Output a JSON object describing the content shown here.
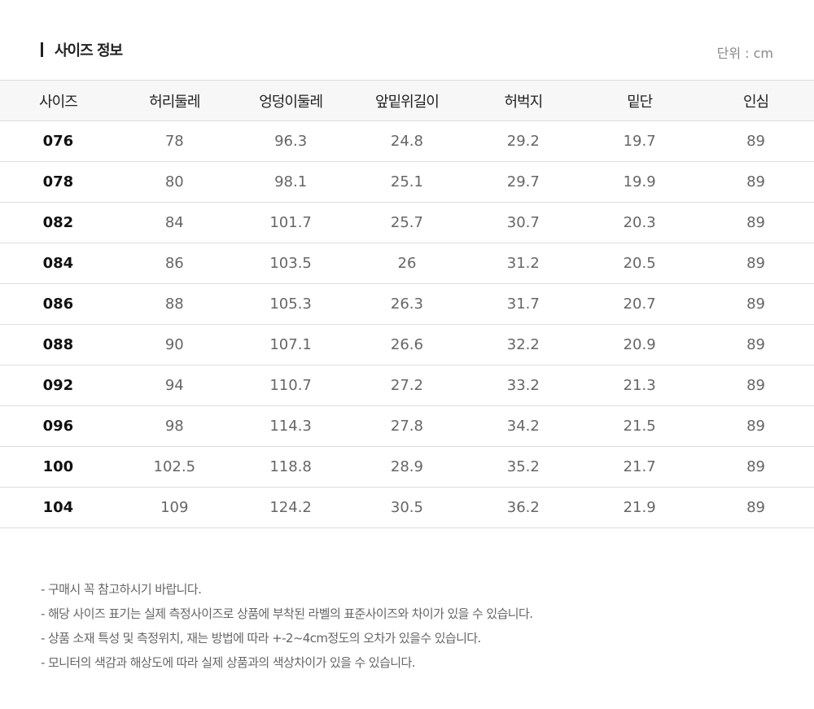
{
  "title": "사이즈 정보",
  "unit": "단위 : cm",
  "table": {
    "headers": [
      "사이즈",
      "허리둘레",
      "엉덩이둘레",
      "앞밑위길이",
      "허벅지",
      "밑단",
      "인심"
    ],
    "rows": [
      [
        "076",
        "78",
        "96.3",
        "24.8",
        "29.2",
        "19.7",
        "89"
      ],
      [
        "078",
        "80",
        "98.1",
        "25.1",
        "29.7",
        "19.9",
        "89"
      ],
      [
        "082",
        "84",
        "101.7",
        "25.7",
        "30.7",
        "20.3",
        "89"
      ],
      [
        "084",
        "86",
        "103.5",
        "26",
        "31.2",
        "20.5",
        "89"
      ],
      [
        "086",
        "88",
        "105.3",
        "26.3",
        "31.7",
        "20.7",
        "89"
      ],
      [
        "088",
        "90",
        "107.1",
        "26.6",
        "32.2",
        "20.9",
        "89"
      ],
      [
        "092",
        "94",
        "110.7",
        "27.2",
        "33.2",
        "21.3",
        "89"
      ],
      [
        "096",
        "98",
        "114.3",
        "27.8",
        "34.2",
        "21.5",
        "89"
      ],
      [
        "100",
        "102.5",
        "118.8",
        "28.9",
        "35.2",
        "21.7",
        "89"
      ],
      [
        "104",
        "109",
        "124.2",
        "30.5",
        "36.2",
        "21.9",
        "89"
      ]
    ]
  },
  "notes": [
    "- 구매시 꼭 참고하시기 바랍니다.",
    "- 해당 사이즈 표기는 실제 측정사이즈로 상품에 부착된 라벨의 표준사이즈와 차이가 있을 수 있습니다.",
    "- 상품 소재 특성 및 측정위치, 재는 방법에 따라 +-2~4cm정도의 오차가 있을수 있습니다.",
    "- 모니터의 색감과 해상도에 따라 실제 상품과의 색상차이가 있을 수 있습니다."
  ]
}
